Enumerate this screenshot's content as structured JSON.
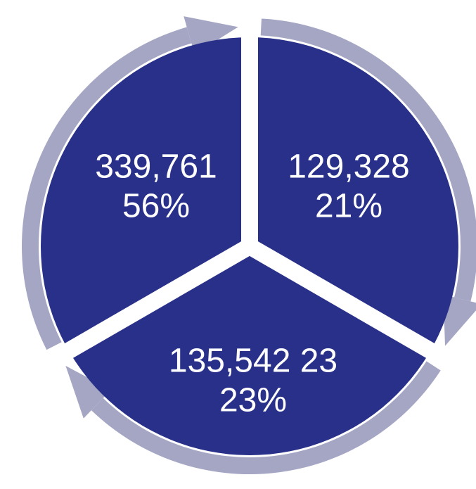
{
  "segments": [
    {
      "value": "339,761",
      "percent": "56%"
    },
    {
      "value": "129,328",
      "percent": "21%"
    },
    {
      "value": "135,542 23",
      "percent": "23%"
    }
  ]
}
